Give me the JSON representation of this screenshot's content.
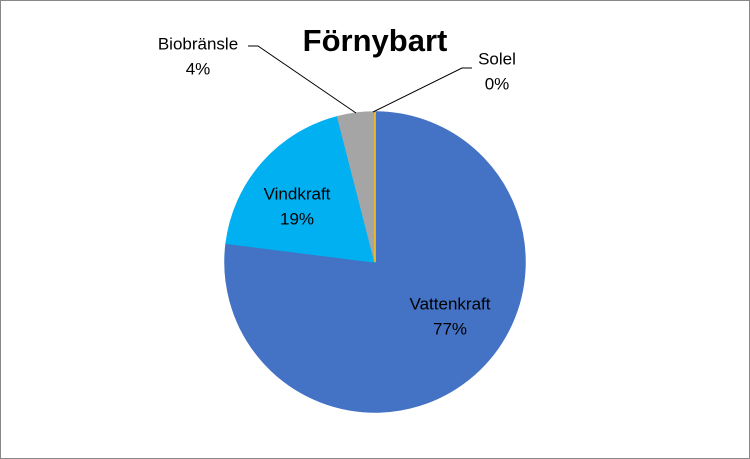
{
  "chart_data": {
    "type": "pie",
    "title": "Förnybart",
    "categories": [
      "Vattenkraft",
      "Vindkraft",
      "Biobränsle",
      "Solel"
    ],
    "values": [
      77,
      19,
      4,
      0
    ],
    "value_labels": [
      "77%",
      "19%",
      "4%",
      "0%"
    ],
    "colors": [
      "#4472c4",
      "#00b0f0",
      "#a5a5a5",
      "#ffc000"
    ]
  }
}
